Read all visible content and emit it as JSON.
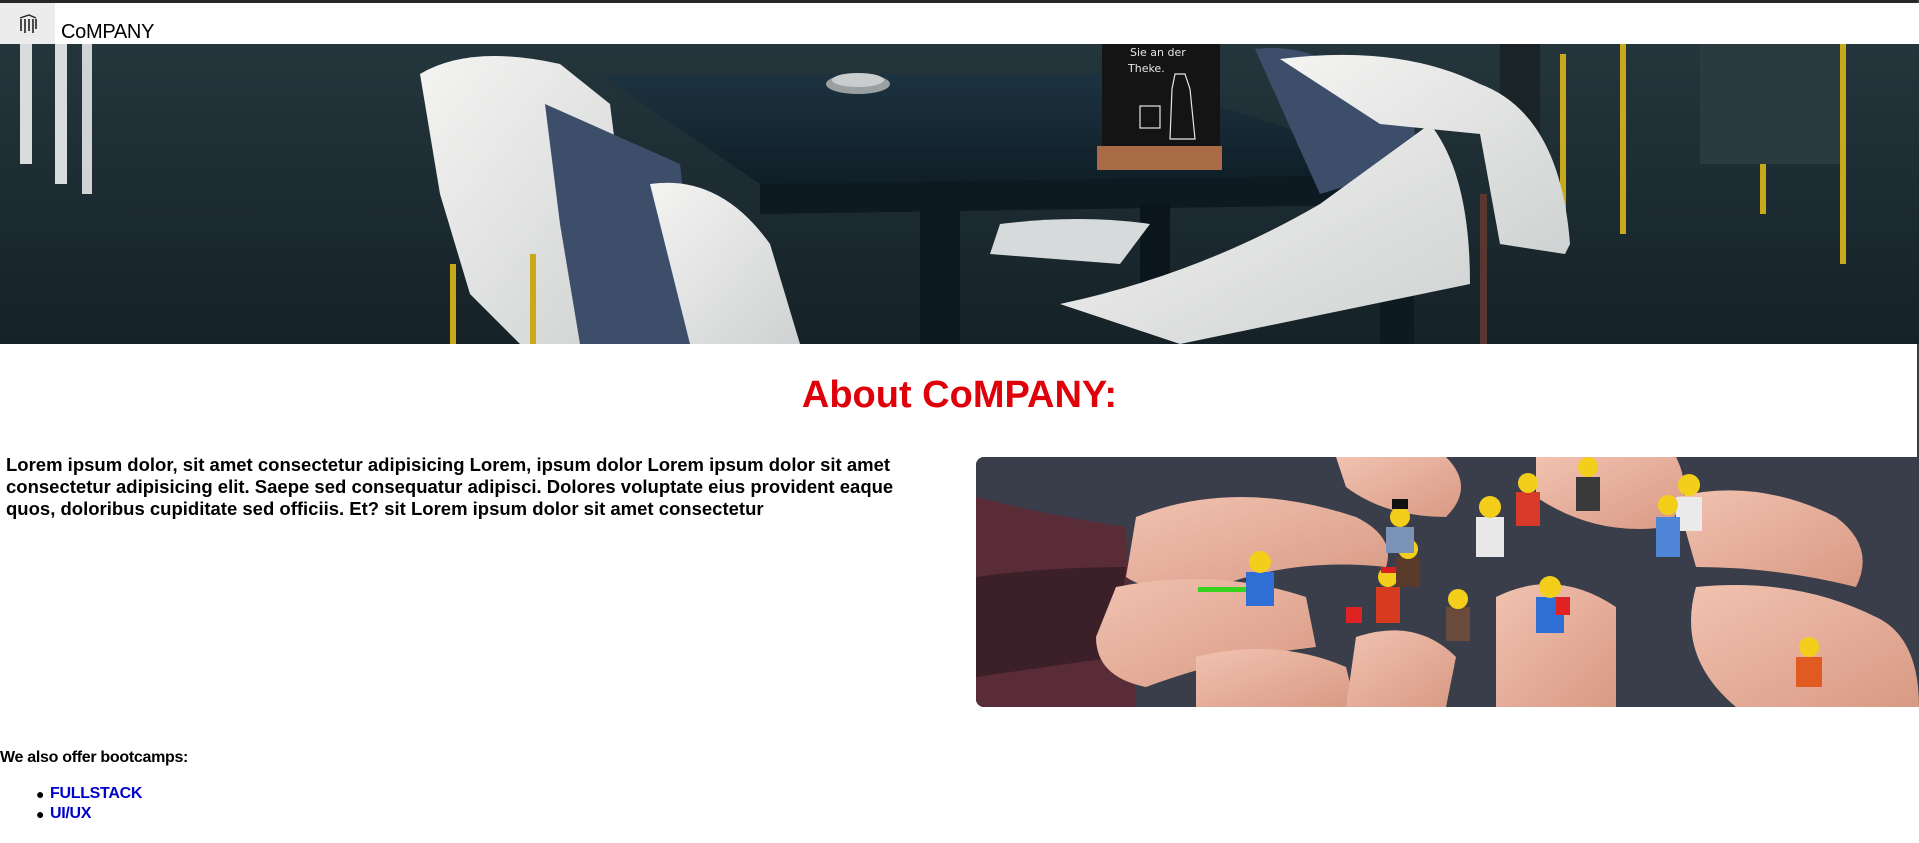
{
  "navbar": {
    "brand": "CoMPANY",
    "logo_icon": "building-columns-icon"
  },
  "hero": {
    "image": "cafe-table-with-fur-draped-chairs-photo"
  },
  "about": {
    "title": "About CoMPANY:",
    "body": "Lorem ipsum dolor, sit amet consectetur adipisicing Lorem, ipsum dolor Lorem ipsum dolor sit amet consectetur adipisicing elit. Saepe sed consequatur adipisci. Dolores voluptate eius provident eaque quos, doloribus cupiditate sed officiis. Et? sit Lorem ipsum dolor sit amet consectetur",
    "image": "hands-holding-lego-minifigures-photo"
  },
  "bootcamps": {
    "heading": "We also offer bootcamps:",
    "items": [
      {
        "label": "FULLSTACK"
      },
      {
        "label": "UI/UX"
      }
    ]
  },
  "colors": {
    "title_red": "#e0000a",
    "link_blue": "#0000cc"
  }
}
